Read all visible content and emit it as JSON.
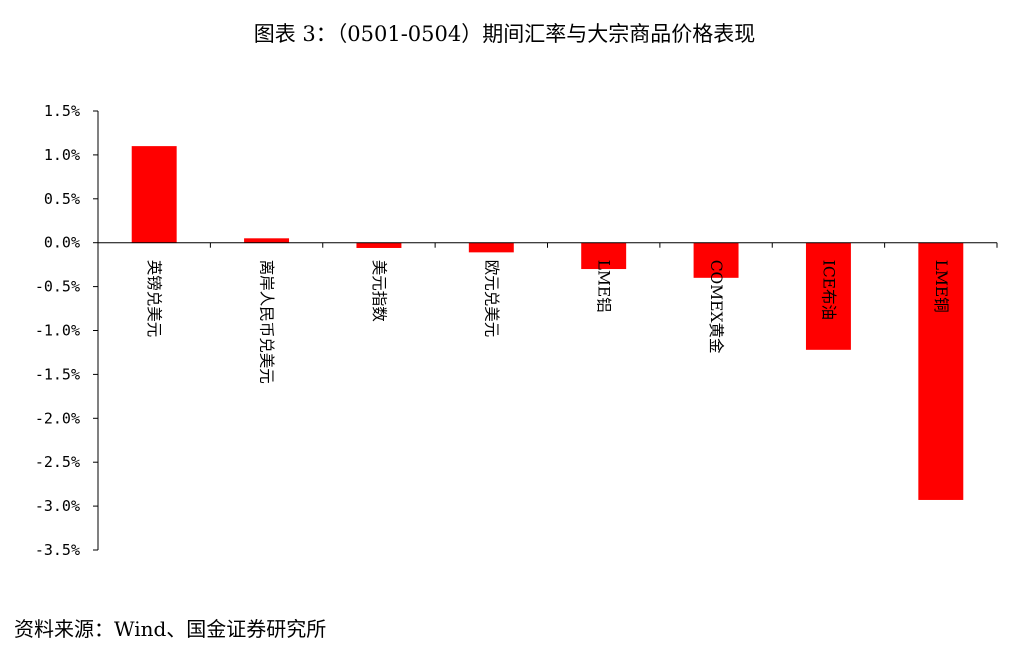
{
  "header": {
    "title": "图表 3：（0501-0504）期间汇率与大宗商品价格表现"
  },
  "footer": {
    "source": "资料来源：Wind、国金证券研究所"
  },
  "chart_data": {
    "type": "bar",
    "title": "图表 3：（0501-0504）期间汇率与大宗商品价格表现",
    "categories": [
      "英镑兑美元",
      "离岸人民币兑美元",
      "美元指数",
      "欧元兑美元",
      "LME铝",
      "COMEX黄金",
      "ICE布油",
      "LME铜"
    ],
    "values": [
      1.1,
      0.05,
      -0.06,
      -0.11,
      -0.3,
      -0.4,
      -1.22,
      -2.93
    ],
    "value_unit": "%",
    "ylim": [
      -3.5,
      1.5
    ],
    "yticks": [
      1.5,
      1.0,
      0.5,
      0.0,
      -0.5,
      -1.0,
      -1.5,
      -2.0,
      -2.5,
      -3.0,
      -3.5
    ],
    "ytick_labels": [
      "1.5%",
      "1.0%",
      "0.5%",
      "0.0%",
      "-0.5%",
      "-1.0%",
      "-1.5%",
      "-2.0%",
      "-2.5%",
      "-3.0%",
      "-3.5%"
    ],
    "bar_color": "#ff0000",
    "grid": false,
    "legend": "none"
  }
}
